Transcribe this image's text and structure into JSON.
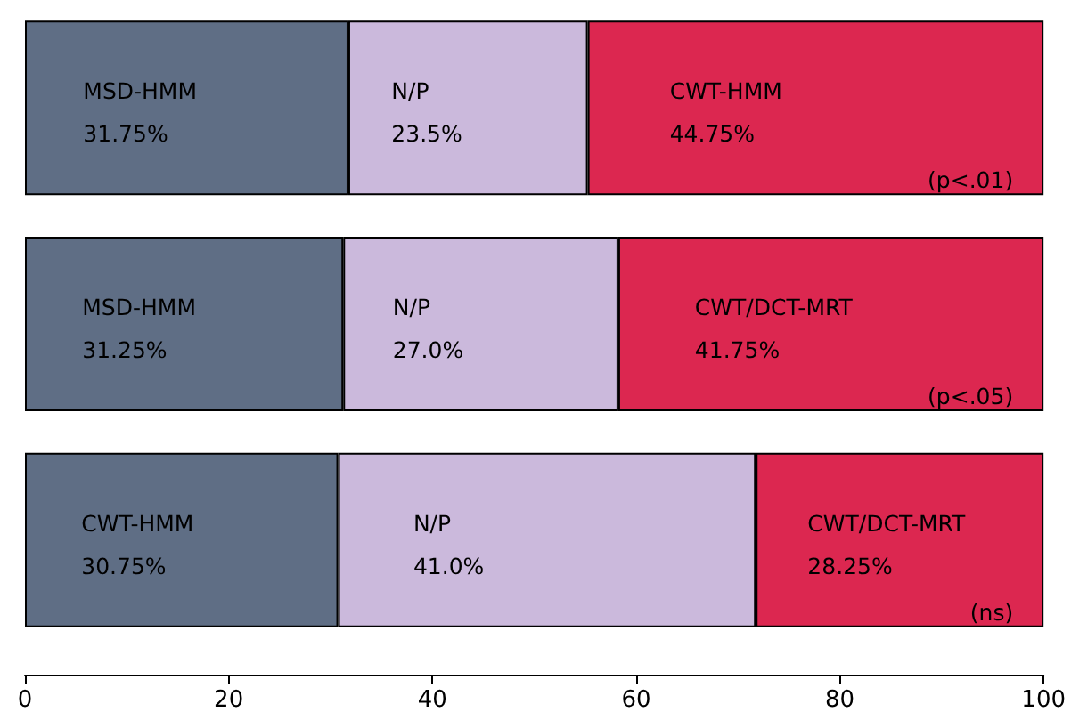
{
  "chart_data": {
    "type": "bar",
    "orientation": "horizontal",
    "stacked": true,
    "categories": [
      null,
      null,
      null
    ],
    "series": [
      {
        "color": "#5f6e85",
        "values": [
          31.75,
          31.25,
          30.75
        ],
        "value_labels": [
          "MSD-HMM\n31.75%",
          "MSD-HMM\n31.25%",
          "CWT-HMM\n30.75%"
        ]
      },
      {
        "color": "#cbb9dc",
        "values": [
          23.5,
          27.0,
          41.0
        ],
        "value_labels": [
          "N/P\n23.5%",
          "N/P\n27.0%",
          "N/P\n41.0%"
        ]
      },
      {
        "color": "#dc2750",
        "values": [
          44.75,
          41.75,
          28.25
        ],
        "value_labels": [
          "CWT-HMM\n44.75%",
          "CWT/DCT-MRT\n41.75%",
          "CWT/DCT-MRT\n28.25%"
        ]
      }
    ],
    "annotations": [
      "(p<.01)",
      "(p<.05)",
      "(ns)"
    ],
    "xlim": [
      0,
      100
    ],
    "xticks": [
      0,
      20,
      40,
      60,
      80,
      100
    ],
    "tick_labels": "x",
    "grid": false
  }
}
